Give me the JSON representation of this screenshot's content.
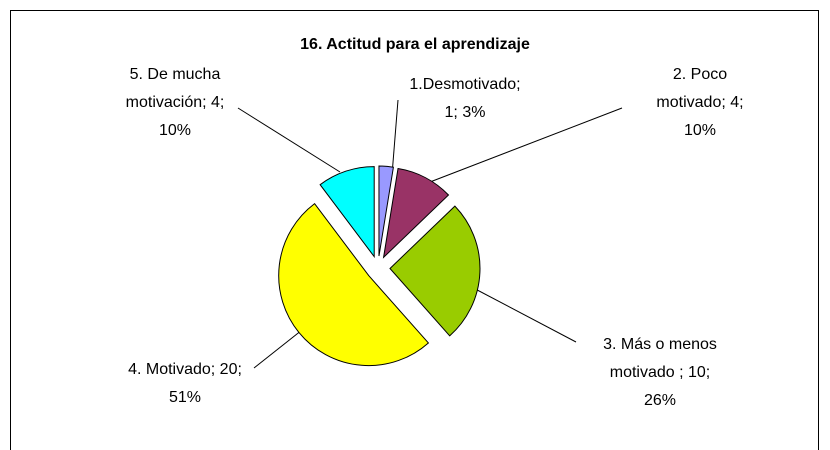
{
  "chart_data": {
    "type": "pie",
    "title": "16. Actitud para el aprendizaje",
    "values": [
      1,
      4,
      10,
      20,
      4
    ],
    "colors": [
      "#9999ff",
      "#993366",
      "#99cc00",
      "#ffff00",
      "#00ffff"
    ],
    "label_lines": [
      [
        "1.Desmotivado;",
        "1; 3%"
      ],
      [
        "2. Poco",
        "motivado; 4;",
        "10%"
      ],
      [
        "3. Más o menos",
        "motivado ; 10;",
        "26%"
      ],
      [
        "4. Motivado; 20;",
        "51%"
      ],
      [
        "5. De mucha",
        "motivación; 4;",
        "10%"
      ]
    ]
  }
}
